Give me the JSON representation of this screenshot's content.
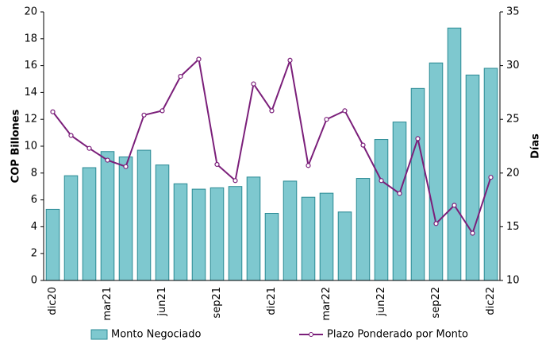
{
  "chart_data": {
    "type": "bar_line",
    "y_label": "COP Billones",
    "y2_label": "Días",
    "categories": [
      "dic20",
      null,
      null,
      "mar21",
      null,
      null,
      "jun21",
      null,
      null,
      "sep21",
      null,
      null,
      "dic21",
      null,
      null,
      "mar22",
      null,
      null,
      "jun22",
      null,
      null,
      "sep22",
      null,
      null,
      "dic22"
    ],
    "series": [
      {
        "name": "Monto Negociado",
        "type": "bar",
        "color": "#7ec8cf",
        "values": [
          5.3,
          7.8,
          8.4,
          9.6,
          9.2,
          9.7,
          8.6,
          7.2,
          6.8,
          6.9,
          7.0,
          7.7,
          5.0,
          7.4,
          6.2,
          6.5,
          5.1,
          7.6,
          10.5,
          11.8,
          14.3,
          16.2,
          18.8,
          15.3,
          15.8
        ]
      },
      {
        "name": "Plazo Ponderado por Monto",
        "type": "line",
        "axis": "y2",
        "color": "#7b1f7a",
        "values": [
          25.7,
          23.5,
          22.3,
          21.2,
          20.6,
          25.4,
          25.8,
          29.0,
          30.6,
          20.8,
          19.3,
          28.3,
          25.8,
          30.5,
          20.7,
          25.0,
          25.8,
          22.6,
          19.3,
          18.1,
          23.2,
          15.3,
          17.0,
          14.4,
          19.6
        ]
      }
    ],
    "ylim": [
      0,
      20
    ],
    "yticks": [
      0,
      2,
      4,
      6,
      8,
      10,
      12,
      14,
      16,
      18,
      20
    ],
    "y2lim": [
      10,
      35
    ],
    "y2ticks": [
      10,
      15,
      20,
      25,
      30,
      35
    ],
    "legend": "bottom"
  }
}
